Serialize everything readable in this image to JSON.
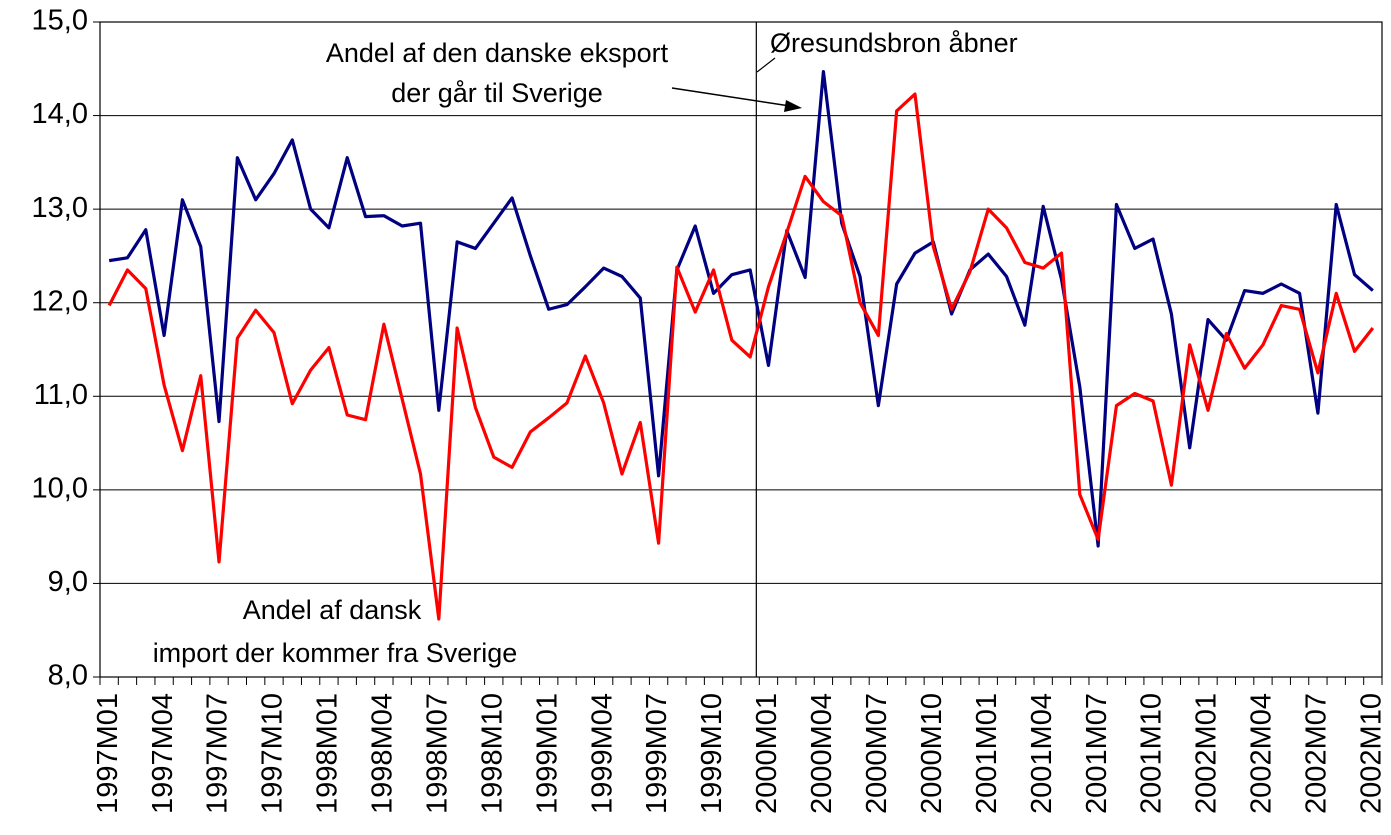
{
  "chart_data": {
    "type": "line",
    "categories": [
      "1997M01",
      null,
      null,
      "1997M04",
      null,
      null,
      "1997M07",
      null,
      null,
      "1997M10",
      null,
      null,
      "1998M01",
      null,
      null,
      "1998M04",
      null,
      null,
      "1998M07",
      null,
      null,
      "1998M10",
      null,
      null,
      "1999M01",
      null,
      null,
      "1999M04",
      null,
      null,
      "1999M07",
      null,
      null,
      "1999M10",
      null,
      null,
      "2000M01",
      null,
      null,
      "2000M04",
      null,
      null,
      "2000M07",
      null,
      null,
      "2000M10",
      null,
      null,
      "2001M01",
      null,
      null,
      "2001M04",
      null,
      null,
      "2001M07",
      null,
      null,
      "2001M10",
      null,
      null,
      "2002M01",
      null,
      null,
      "2002M04",
      null,
      null,
      "2002M07",
      null,
      null,
      "2002M10"
    ],
    "series": [
      {
        "name": "Andel af den danske eksport der går til Sverige",
        "color": "#000080",
        "values": [
          12.45,
          12.48,
          12.78,
          11.65,
          13.1,
          12.6,
          10.73,
          13.55,
          13.1,
          13.38,
          13.74,
          13.0,
          12.8,
          13.55,
          12.92,
          12.93,
          12.82,
          12.85,
          10.85,
          12.65,
          12.58,
          12.85,
          13.12,
          12.5,
          11.93,
          11.98,
          12.17,
          12.37,
          12.28,
          12.05,
          10.15,
          12.35,
          12.82,
          12.1,
          12.3,
          12.35,
          11.33,
          12.77,
          12.27,
          14.47,
          12.85,
          12.28,
          10.9,
          12.2,
          12.53,
          12.65,
          11.88,
          12.35,
          12.52,
          12.28,
          11.76,
          13.03,
          12.25,
          11.1,
          9.4,
          13.05,
          12.58,
          12.68,
          11.88,
          10.45,
          11.82,
          11.6,
          12.13,
          12.1,
          12.2,
          12.1,
          10.82,
          13.05,
          12.3,
          12.13
        ]
      },
      {
        "name": "Andel af dansk import der kommer fra Sverige",
        "color": "#ff0000",
        "values": [
          11.97,
          12.35,
          12.15,
          11.12,
          10.42,
          11.22,
          9.23,
          11.62,
          11.92,
          11.68,
          10.92,
          11.28,
          11.52,
          10.8,
          10.75,
          11.77,
          10.97,
          10.17,
          8.62,
          11.73,
          10.88,
          10.35,
          10.24,
          10.62,
          10.77,
          10.93,
          11.43,
          10.93,
          10.17,
          10.72,
          9.43,
          12.38,
          11.9,
          12.35,
          11.6,
          11.42,
          12.17,
          12.75,
          13.35,
          13.08,
          12.93,
          12.0,
          11.65,
          14.05,
          14.23,
          12.6,
          11.93,
          12.33,
          13.0,
          12.8,
          12.43,
          12.37,
          12.53,
          9.95,
          9.47,
          10.9,
          11.03,
          10.95,
          10.05,
          11.55,
          10.85,
          11.67,
          11.3,
          11.55,
          11.97,
          11.93,
          11.25,
          12.1,
          11.48,
          11.73
        ]
      }
    ],
    "ylim": [
      8,
      15
    ],
    "yticks": [
      {
        "value": 8,
        "label": "8,0"
      },
      {
        "value": 9,
        "label": "9,0"
      },
      {
        "value": 10,
        "label": "10,0"
      },
      {
        "value": 11,
        "label": "11,0"
      },
      {
        "value": 12,
        "label": "12,0"
      },
      {
        "value": 13,
        "label": "13,0"
      },
      {
        "value": 14,
        "label": "14,0"
      },
      {
        "value": 15,
        "label": "15,0"
      }
    ],
    "grid": true,
    "annotations": [
      {
        "lines": [
          "Andel af den danske eksport",
          "der går til Sverige"
        ]
      },
      {
        "lines": [
          "Øresundsbron åbner"
        ]
      },
      {
        "lines": [
          "Andel af dansk",
          "import der kommer fra Sverige"
        ]
      }
    ]
  }
}
